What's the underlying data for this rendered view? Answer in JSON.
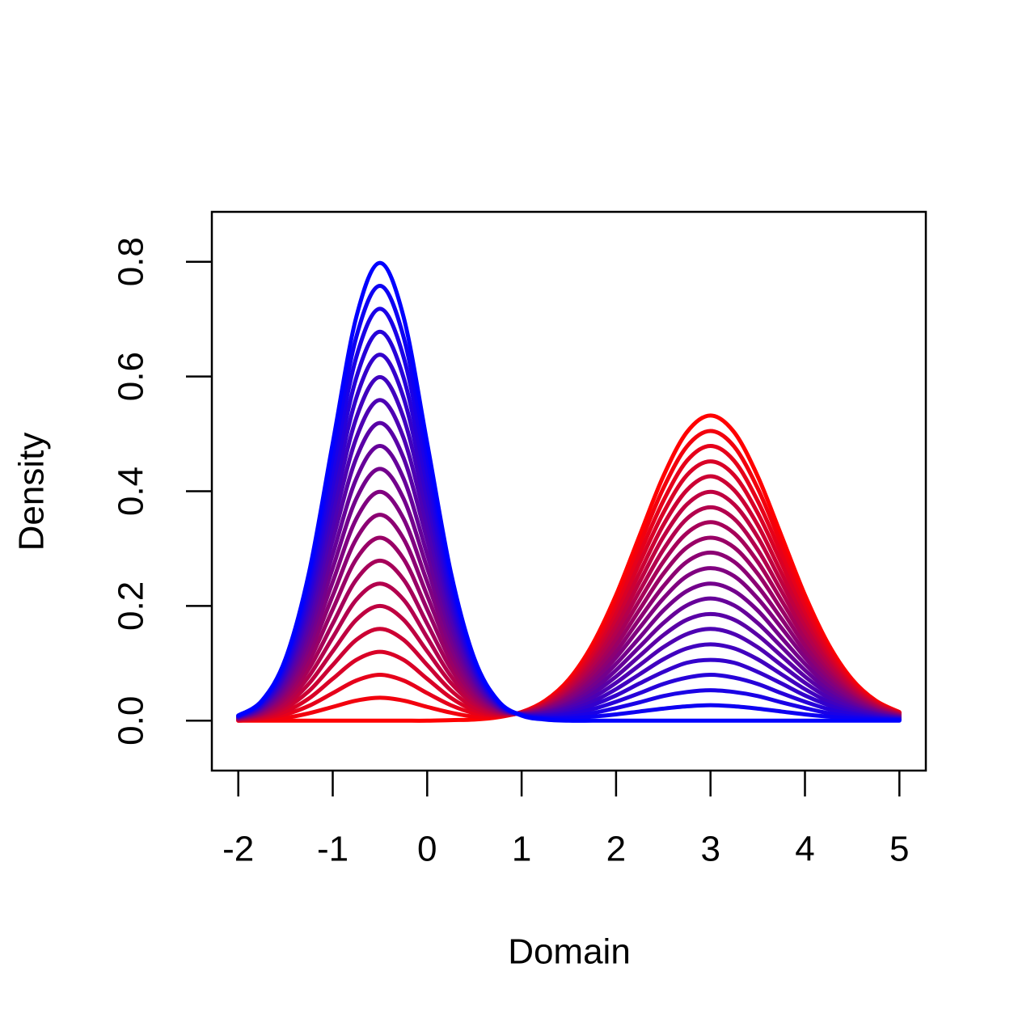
{
  "chart_data": {
    "type": "line",
    "xlabel": "Domain",
    "ylabel": "Density",
    "xlim": [
      -2.28,
      5.28
    ],
    "ylim": [
      -0.087,
      0.887
    ],
    "xticks": [
      -2,
      -1,
      0,
      1,
      2,
      3,
      4,
      5
    ],
    "yticks": [
      {
        "value": 0,
        "label": "0.0"
      },
      0.2,
      0.4,
      0.6,
      0.8
    ],
    "x": [
      -2,
      -1.75,
      -1.5,
      -1.25,
      -1,
      -0.75,
      -0.5,
      -0.25,
      0,
      0.25,
      0.5,
      0.75,
      1,
      1.25,
      1.5,
      1.75,
      2,
      2.25,
      2.5,
      2.75,
      3,
      3.25,
      3.5,
      3.75,
      4,
      4.25,
      4.5,
      4.75,
      5
    ],
    "series": [
      {
        "color": "#ff0000",
        "values": [
          0,
          0,
          0,
          0,
          0,
          0,
          0,
          0,
          0,
          0.001,
          0.002,
          0.006,
          0.015,
          0.035,
          0.072,
          0.133,
          0.219,
          0.323,
          0.426,
          0.503,
          0.532,
          0.503,
          0.426,
          0.323,
          0.219,
          0.133,
          0.072,
          0.035,
          0.015
        ]
      },
      {
        "color": "#f2000d",
        "values": [
          0,
          0.002,
          0.005,
          0.013,
          0.024,
          0.035,
          0.04,
          0.035,
          0.024,
          0.014,
          0.007,
          0.007,
          0.015,
          0.033,
          0.068,
          0.126,
          0.208,
          0.307,
          0.405,
          0.478,
          0.505,
          0.478,
          0.405,
          0.307,
          0.208,
          0.126,
          0.068,
          0.033,
          0.014
        ]
      },
      {
        "color": "#e6001a",
        "values": [
          0.001,
          0.004,
          0.011,
          0.026,
          0.048,
          0.07,
          0.08,
          0.07,
          0.048,
          0.027,
          0.013,
          0.009,
          0.014,
          0.032,
          0.065,
          0.12,
          0.197,
          0.291,
          0.383,
          0.453,
          0.479,
          0.453,
          0.383,
          0.291,
          0.197,
          0.12,
          0.065,
          0.032,
          0.014
        ]
      },
      {
        "color": "#d90026",
        "values": [
          0.001,
          0.005,
          0.016,
          0.039,
          0.073,
          0.106,
          0.12,
          0.106,
          0.073,
          0.04,
          0.018,
          0.01,
          0.014,
          0.03,
          0.061,
          0.113,
          0.186,
          0.275,
          0.362,
          0.428,
          0.452,
          0.428,
          0.362,
          0.275,
          0.186,
          0.113,
          0.061,
          0.03,
          0.013
        ]
      },
      {
        "color": "#cc0033",
        "values": [
          0.002,
          0.007,
          0.022,
          0.052,
          0.097,
          0.141,
          0.16,
          0.141,
          0.097,
          0.053,
          0.023,
          0.012,
          0.014,
          0.028,
          0.058,
          0.106,
          0.175,
          0.258,
          0.341,
          0.402,
          0.426,
          0.402,
          0.341,
          0.258,
          0.175,
          0.106,
          0.058,
          0.028,
          0.012
        ]
      },
      {
        "color": "#bf0040",
        "values": [
          0.002,
          0.009,
          0.027,
          0.065,
          0.121,
          0.176,
          0.2,
          0.176,
          0.121,
          0.066,
          0.029,
          0.013,
          0.014,
          0.027,
          0.054,
          0.1,
          0.164,
          0.242,
          0.32,
          0.377,
          0.399,
          0.377,
          0.32,
          0.242,
          0.164,
          0.1,
          0.054,
          0.026,
          0.011
        ]
      },
      {
        "color": "#b3004d",
        "values": [
          0.003,
          0.011,
          0.032,
          0.078,
          0.145,
          0.211,
          0.239,
          0.211,
          0.145,
          0.078,
          0.034,
          0.015,
          0.013,
          0.025,
          0.05,
          0.093,
          0.153,
          0.226,
          0.298,
          0.352,
          0.372,
          0.352,
          0.298,
          0.226,
          0.153,
          0.093,
          0.05,
          0.025,
          0.011
        ]
      },
      {
        "color": "#a60059",
        "values": [
          0.003,
          0.012,
          0.038,
          0.091,
          0.169,
          0.246,
          0.279,
          0.246,
          0.169,
          0.091,
          0.039,
          0.016,
          0.013,
          0.023,
          0.047,
          0.086,
          0.142,
          0.21,
          0.277,
          0.327,
          0.346,
          0.327,
          0.277,
          0.21,
          0.142,
          0.086,
          0.047,
          0.023,
          0.01
        ]
      },
      {
        "color": "#990066",
        "values": [
          0.004,
          0.014,
          0.043,
          0.104,
          0.194,
          0.282,
          0.319,
          0.282,
          0.194,
          0.104,
          0.044,
          0.018,
          0.013,
          0.022,
          0.043,
          0.08,
          0.131,
          0.194,
          0.256,
          0.302,
          0.319,
          0.302,
          0.256,
          0.194,
          0.131,
          0.08,
          0.043,
          0.021,
          0.009
        ]
      },
      {
        "color": "#8c0073",
        "values": [
          0.004,
          0.016,
          0.049,
          0.117,
          0.218,
          0.317,
          0.359,
          0.317,
          0.218,
          0.117,
          0.05,
          0.019,
          0.012,
          0.02,
          0.04,
          0.073,
          0.12,
          0.178,
          0.234,
          0.277,
          0.293,
          0.277,
          0.234,
          0.178,
          0.12,
          0.073,
          0.04,
          0.019,
          0.008
        ]
      },
      {
        "color": "#800080",
        "values": [
          0.005,
          0.018,
          0.054,
          0.13,
          0.242,
          0.352,
          0.399,
          0.352,
          0.242,
          0.13,
          0.055,
          0.021,
          0.012,
          0.019,
          0.036,
          0.067,
          0.11,
          0.162,
          0.213,
          0.252,
          0.266,
          0.252,
          0.213,
          0.162,
          0.11,
          0.067,
          0.036,
          0.018,
          0.008
        ]
      },
      {
        "color": "#73008c",
        "values": [
          0.005,
          0.019,
          0.059,
          0.142,
          0.266,
          0.387,
          0.439,
          0.387,
          0.266,
          0.143,
          0.06,
          0.022,
          0.012,
          0.017,
          0.032,
          0.06,
          0.099,
          0.145,
          0.192,
          0.226,
          0.239,
          0.226,
          0.192,
          0.145,
          0.099,
          0.06,
          0.032,
          0.016,
          0.007
        ]
      },
      {
        "color": "#660099",
        "values": [
          0.005,
          0.021,
          0.065,
          0.155,
          0.29,
          0.422,
          0.479,
          0.422,
          0.29,
          0.156,
          0.066,
          0.023,
          0.011,
          0.015,
          0.029,
          0.053,
          0.088,
          0.129,
          0.17,
          0.201,
          0.213,
          0.201,
          0.17,
          0.129,
          0.088,
          0.053,
          0.029,
          0.014,
          0.006
        ]
      },
      {
        "color": "#5900a6",
        "values": [
          0.006,
          0.023,
          0.07,
          0.168,
          0.315,
          0.458,
          0.519,
          0.458,
          0.315,
          0.169,
          0.071,
          0.025,
          0.011,
          0.014,
          0.025,
          0.047,
          0.077,
          0.113,
          0.149,
          0.176,
          0.186,
          0.176,
          0.149,
          0.113,
          0.077,
          0.047,
          0.025,
          0.012,
          0.005
        ]
      },
      {
        "color": "#4d00b3",
        "values": [
          0.006,
          0.025,
          0.076,
          0.181,
          0.339,
          0.493,
          0.559,
          0.493,
          0.339,
          0.182,
          0.076,
          0.026,
          0.011,
          0.012,
          0.022,
          0.04,
          0.066,
          0.097,
          0.128,
          0.151,
          0.16,
          0.151,
          0.128,
          0.097,
          0.066,
          0.04,
          0.022,
          0.011,
          0.005
        ]
      },
      {
        "color": "#4000bf",
        "values": [
          0.007,
          0.026,
          0.081,
          0.194,
          0.363,
          0.528,
          0.599,
          0.528,
          0.363,
          0.195,
          0.082,
          0.028,
          0.011,
          0.01,
          0.018,
          0.033,
          0.055,
          0.081,
          0.107,
          0.126,
          0.133,
          0.126,
          0.107,
          0.081,
          0.055,
          0.033,
          0.018,
          0.009,
          0.004
        ]
      },
      {
        "color": "#3300cc",
        "values": [
          0.007,
          0.028,
          0.086,
          0.207,
          0.387,
          0.563,
          0.638,
          0.563,
          0.387,
          0.207,
          0.087,
          0.029,
          0.01,
          0.009,
          0.014,
          0.027,
          0.044,
          0.065,
          0.085,
          0.101,
          0.106,
          0.101,
          0.085,
          0.065,
          0.044,
          0.027,
          0.014,
          0.007,
          0.003
        ]
      },
      {
        "color": "#2600d9",
        "values": [
          0.008,
          0.03,
          0.092,
          0.22,
          0.411,
          0.598,
          0.678,
          0.598,
          0.411,
          0.22,
          0.092,
          0.031,
          0.01,
          0.007,
          0.011,
          0.02,
          0.033,
          0.048,
          0.064,
          0.075,
          0.08,
          0.075,
          0.064,
          0.048,
          0.033,
          0.02,
          0.011,
          0.005,
          0.002
        ]
      },
      {
        "color": "#1a00e6",
        "values": [
          0.008,
          0.032,
          0.097,
          0.233,
          0.436,
          0.634,
          0.718,
          0.634,
          0.436,
          0.233,
          0.097,
          0.032,
          0.01,
          0.005,
          0.007,
          0.013,
          0.022,
          0.032,
          0.043,
          0.05,
          0.053,
          0.05,
          0.043,
          0.032,
          0.022,
          0.013,
          0.007,
          0.004,
          0.002
        ]
      },
      {
        "color": "#0d00f2",
        "values": [
          0.009,
          0.033,
          0.103,
          0.246,
          0.46,
          0.669,
          0.758,
          0.669,
          0.46,
          0.246,
          0.103,
          0.034,
          0.009,
          0.004,
          0.004,
          0.007,
          0.011,
          0.016,
          0.021,
          0.025,
          0.027,
          0.025,
          0.021,
          0.016,
          0.011,
          0.007,
          0.004,
          0.002,
          0.001
        ]
      },
      {
        "color": "#0000ff",
        "values": [
          0.009,
          0.035,
          0.108,
          0.259,
          0.484,
          0.704,
          0.798,
          0.704,
          0.484,
          0.259,
          0.108,
          0.035,
          0.009,
          0.002,
          0,
          0,
          0,
          0,
          0,
          0,
          0,
          0,
          0,
          0,
          0,
          0,
          0,
          0,
          0
        ]
      }
    ]
  }
}
